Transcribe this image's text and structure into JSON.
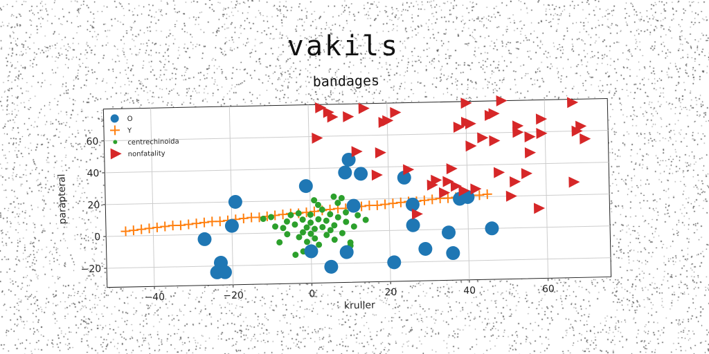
{
  "chart_data": {
    "type": "scatter",
    "title": "vakils",
    "subtitle": "bandages",
    "xlabel": "kruller",
    "ylabel": "parapteral",
    "xlim": [
      -52,
      76
    ],
    "ylim": [
      -32,
      80
    ],
    "xticks": [
      -40,
      -20,
      0,
      20,
      40,
      60
    ],
    "yticks": [
      -20,
      0,
      20,
      40,
      60
    ],
    "grid": true,
    "legend_position": "top-left",
    "series": [
      {
        "name": "O",
        "marker": "circle-large",
        "color": "#1f77b4",
        "points": [
          [
            -27,
            -3
          ],
          [
            -23,
            -18
          ],
          [
            -24,
            -24
          ],
          [
            -22,
            -24
          ],
          [
            -20,
            5
          ],
          [
            -19,
            20
          ],
          [
            -1,
            29
          ],
          [
            0,
            -12
          ],
          [
            5,
            -22
          ],
          [
            9,
            -13
          ],
          [
            9,
            37
          ],
          [
            10,
            45
          ],
          [
            11,
            16
          ],
          [
            13,
            36
          ],
          [
            21,
            -20
          ],
          [
            24,
            33
          ],
          [
            26,
            16
          ],
          [
            26,
            3
          ],
          [
            29,
            -12
          ],
          [
            35,
            -2
          ],
          [
            36,
            -15
          ],
          [
            38,
            19
          ],
          [
            40,
            20
          ],
          [
            46,
            0
          ]
        ]
      },
      {
        "name": "Y",
        "marker": "plus",
        "color": "#ff7f0e",
        "points": [
          [
            -47,
            3
          ],
          [
            -45,
            3.5
          ],
          [
            -43,
            4
          ],
          [
            -41,
            4.5
          ],
          [
            -39,
            5
          ],
          [
            -37,
            5.5
          ],
          [
            -35,
            6
          ],
          [
            -33,
            6
          ],
          [
            -31,
            6.5
          ],
          [
            -29,
            7
          ],
          [
            -27,
            7.5
          ],
          [
            -25,
            8
          ],
          [
            -23,
            8
          ],
          [
            -21,
            8.5
          ],
          [
            -19,
            9
          ],
          [
            -17,
            9.5
          ],
          [
            -15,
            10
          ],
          [
            -13,
            10
          ],
          [
            -11,
            10.5
          ],
          [
            -9,
            11
          ],
          [
            -7,
            11.5
          ],
          [
            -5,
            12
          ],
          [
            -3,
            12
          ],
          [
            -1,
            12.5
          ],
          [
            1,
            13
          ],
          [
            3,
            13.5
          ],
          [
            5,
            14
          ],
          [
            7,
            14.5
          ],
          [
            9,
            14.5
          ],
          [
            11,
            15
          ],
          [
            13,
            15.5
          ],
          [
            15,
            16
          ],
          [
            17,
            16
          ],
          [
            19,
            16.5
          ],
          [
            21,
            17
          ],
          [
            23,
            17.5
          ],
          [
            25,
            18
          ],
          [
            27,
            18
          ],
          [
            29,
            18.5
          ],
          [
            31,
            19
          ],
          [
            33,
            19.5
          ],
          [
            35,
            19.5
          ],
          [
            37,
            20
          ],
          [
            39,
            20.5
          ],
          [
            41,
            21
          ],
          [
            43,
            21
          ],
          [
            45,
            21.5
          ]
        ]
      },
      {
        "name": "centrechinoida",
        "marker": "dot",
        "color": "#2ca02c",
        "points": [
          [
            -12,
            9
          ],
          [
            -10,
            10
          ],
          [
            -9,
            4
          ],
          [
            -8,
            -6
          ],
          [
            -7,
            3
          ],
          [
            -6,
            7
          ],
          [
            -6,
            -1
          ],
          [
            -5,
            11
          ],
          [
            -4,
            5
          ],
          [
            -3,
            -3
          ],
          [
            -3,
            12
          ],
          [
            -2,
            0
          ],
          [
            -2,
            8
          ],
          [
            -1,
            3
          ],
          [
            -1,
            -6
          ],
          [
            0,
            -1
          ],
          [
            0,
            6
          ],
          [
            0,
            11
          ],
          [
            1,
            -4
          ],
          [
            1,
            2
          ],
          [
            2,
            8
          ],
          [
            2,
            -8
          ],
          [
            3,
            3
          ],
          [
            3,
            14
          ],
          [
            4,
            -2
          ],
          [
            4,
            7
          ],
          [
            5,
            1
          ],
          [
            5,
            11
          ],
          [
            6,
            -5
          ],
          [
            6,
            4
          ],
          [
            7,
            9
          ],
          [
            7,
            18
          ],
          [
            8,
            -1
          ],
          [
            8,
            21
          ],
          [
            9,
            6
          ],
          [
            9,
            12
          ],
          [
            10,
            -9
          ],
          [
            11,
            3
          ],
          [
            12,
            10
          ],
          [
            -4,
            -14
          ],
          [
            -2,
            -12
          ],
          [
            2,
            17
          ],
          [
            6,
            22
          ],
          [
            10,
            -7
          ],
          [
            14,
            7
          ],
          [
            1,
            20
          ]
        ]
      },
      {
        "name": "nonfatality",
        "marker": "triangle-right",
        "color": "#d62728",
        "points": [
          [
            2,
            59
          ],
          [
            3,
            78
          ],
          [
            5,
            75
          ],
          [
            6,
            72
          ],
          [
            10,
            72
          ],
          [
            12,
            50
          ],
          [
            14,
            77
          ],
          [
            17,
            35
          ],
          [
            18,
            49
          ],
          [
            19,
            68
          ],
          [
            20,
            69
          ],
          [
            22,
            74
          ],
          [
            25,
            38
          ],
          [
            27,
            10
          ],
          [
            31,
            28
          ],
          [
            32,
            31
          ],
          [
            34,
            23
          ],
          [
            35,
            30
          ],
          [
            36,
            38
          ],
          [
            37,
            27
          ],
          [
            38,
            64
          ],
          [
            39,
            24
          ],
          [
            40,
            79
          ],
          [
            40,
            67
          ],
          [
            41,
            52
          ],
          [
            41,
            66
          ],
          [
            42,
            25
          ],
          [
            44,
            57
          ],
          [
            46,
            71
          ],
          [
            47,
            55
          ],
          [
            47,
            72
          ],
          [
            48,
            35
          ],
          [
            49,
            80
          ],
          [
            51,
            20
          ],
          [
            52,
            29
          ],
          [
            53,
            64
          ],
          [
            53,
            60
          ],
          [
            55,
            34
          ],
          [
            56,
            47
          ],
          [
            56,
            57
          ],
          [
            58,
            12
          ],
          [
            59,
            59
          ],
          [
            59,
            68
          ],
          [
            67,
            78
          ],
          [
            67,
            28
          ],
          [
            68,
            60
          ],
          [
            69,
            63
          ],
          [
            70,
            55
          ]
        ]
      }
    ]
  }
}
